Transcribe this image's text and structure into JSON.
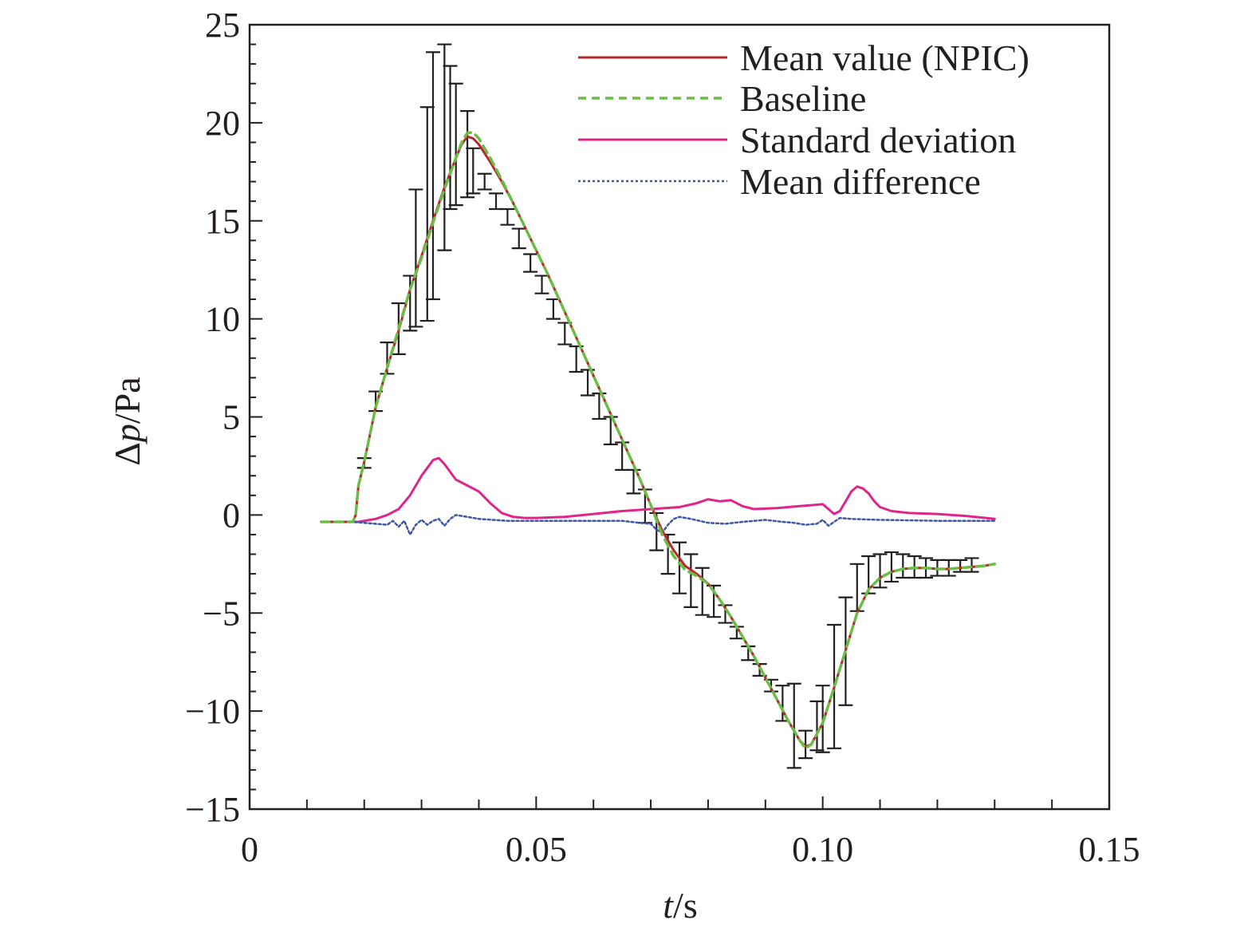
{
  "chart_data": {
    "type": "line",
    "xlabel": {
      "var": "t",
      "unit": "/s"
    },
    "ylabel": {
      "var": "Δ",
      "var2": "p",
      "unit": "/Pa"
    },
    "xlim": [
      0,
      0.15
    ],
    "ylim": [
      -15,
      25
    ],
    "xticks": [
      0,
      0.05,
      0.1,
      0.15
    ],
    "xtick_labels": [
      "0",
      "0.05",
      "0.10",
      "0.15"
    ],
    "yticks": [
      -15,
      -10,
      -5,
      0,
      5,
      10,
      15,
      20,
      25
    ],
    "ytick_labels": [
      "−15",
      "−10",
      "−5",
      "0",
      "5",
      "10",
      "15",
      "20",
      "25"
    ],
    "grid": false,
    "legend_position": "top-right",
    "series": [
      {
        "name": "Mean value (NPIC)",
        "color": "#b5282e",
        "dash": "solid",
        "points": [
          [
            0.0125,
            -0.35
          ],
          [
            0.018,
            -0.35
          ],
          [
            0.0185,
            0.0
          ],
          [
            0.019,
            1.5
          ],
          [
            0.02,
            2.7
          ],
          [
            0.022,
            5.5
          ],
          [
            0.024,
            7.5
          ],
          [
            0.026,
            9.4
          ],
          [
            0.028,
            11.5
          ],
          [
            0.03,
            13.2
          ],
          [
            0.032,
            15.0
          ],
          [
            0.034,
            16.7
          ],
          [
            0.036,
            18.2
          ],
          [
            0.037,
            18.9
          ],
          [
            0.038,
            19.3
          ],
          [
            0.039,
            19.2
          ],
          [
            0.04,
            18.9
          ],
          [
            0.042,
            18.0
          ],
          [
            0.044,
            17.0
          ],
          [
            0.046,
            15.9
          ],
          [
            0.048,
            14.7
          ],
          [
            0.05,
            13.5
          ],
          [
            0.052,
            12.3
          ],
          [
            0.054,
            11.0
          ],
          [
            0.056,
            9.7
          ],
          [
            0.058,
            8.4
          ],
          [
            0.06,
            7.1
          ],
          [
            0.062,
            5.8
          ],
          [
            0.064,
            4.5
          ],
          [
            0.066,
            3.2
          ],
          [
            0.068,
            1.9
          ],
          [
            0.07,
            0.5
          ],
          [
            0.072,
            -0.8
          ],
          [
            0.074,
            -1.8
          ],
          [
            0.076,
            -2.6
          ],
          [
            0.078,
            -3.0
          ],
          [
            0.08,
            -3.5
          ],
          [
            0.082,
            -4.3
          ],
          [
            0.084,
            -5.2
          ],
          [
            0.086,
            -6.2
          ],
          [
            0.088,
            -7.2
          ],
          [
            0.09,
            -8.3
          ],
          [
            0.092,
            -9.4
          ],
          [
            0.094,
            -10.5
          ],
          [
            0.096,
            -11.5
          ],
          [
            0.097,
            -11.8
          ],
          [
            0.098,
            -11.7
          ],
          [
            0.1,
            -10.6
          ],
          [
            0.102,
            -8.8
          ],
          [
            0.104,
            -6.9
          ],
          [
            0.106,
            -5.0
          ],
          [
            0.108,
            -3.8
          ],
          [
            0.11,
            -3.2
          ],
          [
            0.112,
            -2.9
          ],
          [
            0.114,
            -2.75
          ],
          [
            0.116,
            -2.7
          ],
          [
            0.118,
            -2.7
          ],
          [
            0.12,
            -2.75
          ],
          [
            0.122,
            -2.75
          ],
          [
            0.124,
            -2.7
          ],
          [
            0.126,
            -2.65
          ],
          [
            0.128,
            -2.6
          ],
          [
            0.13,
            -2.5
          ]
        ]
      },
      {
        "name": "Baseline",
        "color": "#6cbd45",
        "dash": "dashed",
        "points": [
          [
            0.0125,
            -0.35
          ],
          [
            0.018,
            -0.35
          ],
          [
            0.0185,
            0.0
          ],
          [
            0.019,
            1.5
          ],
          [
            0.02,
            2.7
          ],
          [
            0.022,
            5.5
          ],
          [
            0.024,
            7.5
          ],
          [
            0.026,
            9.5
          ],
          [
            0.028,
            11.5
          ],
          [
            0.03,
            13.1
          ],
          [
            0.032,
            14.9
          ],
          [
            0.034,
            16.6
          ],
          [
            0.036,
            18.2
          ],
          [
            0.037,
            19.0
          ],
          [
            0.038,
            19.5
          ],
          [
            0.039,
            19.5
          ],
          [
            0.04,
            19.2
          ],
          [
            0.042,
            18.2
          ],
          [
            0.044,
            17.1
          ],
          [
            0.046,
            15.9
          ],
          [
            0.048,
            14.7
          ],
          [
            0.05,
            13.5
          ],
          [
            0.052,
            12.3
          ],
          [
            0.054,
            11.0
          ],
          [
            0.056,
            9.7
          ],
          [
            0.058,
            8.4
          ],
          [
            0.06,
            7.1
          ],
          [
            0.062,
            5.8
          ],
          [
            0.064,
            4.5
          ],
          [
            0.066,
            3.2
          ],
          [
            0.068,
            1.9
          ],
          [
            0.07,
            0.5
          ],
          [
            0.072,
            -1.0
          ],
          [
            0.074,
            -2.1
          ],
          [
            0.076,
            -2.8
          ],
          [
            0.078,
            -3.1
          ],
          [
            0.08,
            -3.5
          ],
          [
            0.082,
            -4.3
          ],
          [
            0.084,
            -5.2
          ],
          [
            0.086,
            -6.2
          ],
          [
            0.088,
            -7.2
          ],
          [
            0.09,
            -8.3
          ],
          [
            0.092,
            -9.4
          ],
          [
            0.094,
            -10.5
          ],
          [
            0.096,
            -11.5
          ],
          [
            0.097,
            -11.9
          ],
          [
            0.098,
            -11.7
          ],
          [
            0.1,
            -10.6
          ],
          [
            0.102,
            -8.8
          ],
          [
            0.104,
            -6.9
          ],
          [
            0.106,
            -5.0
          ],
          [
            0.108,
            -3.8
          ],
          [
            0.11,
            -3.2
          ],
          [
            0.112,
            -2.9
          ],
          [
            0.114,
            -2.75
          ],
          [
            0.116,
            -2.7
          ],
          [
            0.118,
            -2.7
          ],
          [
            0.12,
            -2.75
          ],
          [
            0.122,
            -2.75
          ],
          [
            0.124,
            -2.7
          ],
          [
            0.126,
            -2.65
          ],
          [
            0.128,
            -2.6
          ],
          [
            0.13,
            -2.5
          ]
        ]
      },
      {
        "name": "Standard deviation",
        "color": "#e0258a",
        "dash": "solid",
        "points": [
          [
            0.0125,
            -0.35
          ],
          [
            0.019,
            -0.35
          ],
          [
            0.022,
            -0.2
          ],
          [
            0.024,
            0.0
          ],
          [
            0.026,
            0.3
          ],
          [
            0.028,
            1.0
          ],
          [
            0.03,
            2.0
          ],
          [
            0.032,
            2.8
          ],
          [
            0.033,
            2.9
          ],
          [
            0.034,
            2.6
          ],
          [
            0.036,
            1.8
          ],
          [
            0.038,
            1.5
          ],
          [
            0.04,
            1.2
          ],
          [
            0.042,
            0.6
          ],
          [
            0.044,
            0.1
          ],
          [
            0.046,
            -0.1
          ],
          [
            0.048,
            -0.15
          ],
          [
            0.05,
            -0.15
          ],
          [
            0.055,
            -0.1
          ],
          [
            0.06,
            0.05
          ],
          [
            0.065,
            0.2
          ],
          [
            0.07,
            0.3
          ],
          [
            0.075,
            0.4
          ],
          [
            0.078,
            0.6
          ],
          [
            0.08,
            0.8
          ],
          [
            0.082,
            0.7
          ],
          [
            0.084,
            0.75
          ],
          [
            0.086,
            0.45
          ],
          [
            0.088,
            0.3
          ],
          [
            0.092,
            0.35
          ],
          [
            0.096,
            0.45
          ],
          [
            0.1,
            0.55
          ],
          [
            0.101,
            0.3
          ],
          [
            0.102,
            0.05
          ],
          [
            0.103,
            0.2
          ],
          [
            0.104,
            0.7
          ],
          [
            0.105,
            1.2
          ],
          [
            0.106,
            1.45
          ],
          [
            0.107,
            1.35
          ],
          [
            0.108,
            1.1
          ],
          [
            0.109,
            0.7
          ],
          [
            0.11,
            0.4
          ],
          [
            0.112,
            0.2
          ],
          [
            0.115,
            0.1
          ],
          [
            0.12,
            0.05
          ],
          [
            0.125,
            -0.05
          ],
          [
            0.13,
            -0.2
          ]
        ]
      },
      {
        "name": "Mean difference",
        "color": "#3f57a6",
        "dash": "dotted",
        "points": [
          [
            0.0125,
            -0.35
          ],
          [
            0.018,
            -0.35
          ],
          [
            0.02,
            -0.4
          ],
          [
            0.022,
            -0.45
          ],
          [
            0.024,
            -0.5
          ],
          [
            0.025,
            -0.3
          ],
          [
            0.026,
            -0.6
          ],
          [
            0.027,
            -0.3
          ],
          [
            0.028,
            -1.0
          ],
          [
            0.029,
            -0.5
          ],
          [
            0.03,
            -0.25
          ],
          [
            0.031,
            -0.5
          ],
          [
            0.032,
            -0.3
          ],
          [
            0.033,
            -0.2
          ],
          [
            0.034,
            -0.55
          ],
          [
            0.035,
            -0.2
          ],
          [
            0.036,
            0.0
          ],
          [
            0.038,
            -0.1
          ],
          [
            0.04,
            -0.2
          ],
          [
            0.045,
            -0.3
          ],
          [
            0.05,
            -0.3
          ],
          [
            0.055,
            -0.3
          ],
          [
            0.06,
            -0.3
          ],
          [
            0.065,
            -0.3
          ],
          [
            0.068,
            -0.4
          ],
          [
            0.07,
            -0.45
          ],
          [
            0.071,
            -0.75
          ],
          [
            0.072,
            -0.9
          ],
          [
            0.073,
            -0.5
          ],
          [
            0.074,
            -0.2
          ],
          [
            0.075,
            -0.1
          ],
          [
            0.077,
            -0.2
          ],
          [
            0.08,
            -0.4
          ],
          [
            0.083,
            -0.45
          ],
          [
            0.086,
            -0.35
          ],
          [
            0.09,
            -0.25
          ],
          [
            0.093,
            -0.35
          ],
          [
            0.095,
            -0.4
          ],
          [
            0.097,
            -0.5
          ],
          [
            0.099,
            -0.45
          ],
          [
            0.1,
            -0.25
          ],
          [
            0.101,
            -0.55
          ],
          [
            0.102,
            -0.35
          ],
          [
            0.103,
            -0.15
          ],
          [
            0.105,
            -0.2
          ],
          [
            0.11,
            -0.25
          ],
          [
            0.12,
            -0.3
          ],
          [
            0.13,
            -0.3
          ]
        ]
      }
    ],
    "error_bars": {
      "color": "#231f20",
      "bars": [
        [
          0.02,
          2.4,
          2.9
        ],
        [
          0.022,
          5.3,
          6.3
        ],
        [
          0.024,
          7.2,
          8.8
        ],
        [
          0.026,
          8.2,
          10.8
        ],
        [
          0.028,
          9.4,
          12.2
        ],
        [
          0.029,
          9.6,
          16.6
        ],
        [
          0.031,
          9.9,
          20.8
        ],
        [
          0.032,
          11.0,
          23.6
        ],
        [
          0.034,
          13.5,
          24.0
        ],
        [
          0.035,
          15.6,
          22.9
        ],
        [
          0.036,
          15.8,
          22.0
        ],
        [
          0.038,
          16.2,
          20.6
        ],
        [
          0.039,
          16.4,
          18.7
        ],
        [
          0.041,
          16.6,
          17.4
        ],
        [
          0.043,
          15.6,
          16.4
        ],
        [
          0.045,
          14.8,
          15.6
        ],
        [
          0.047,
          13.6,
          14.6
        ],
        [
          0.049,
          12.4,
          13.3
        ],
        [
          0.051,
          11.3,
          12.2
        ],
        [
          0.053,
          10.0,
          11.0
        ],
        [
          0.055,
          8.7,
          9.8
        ],
        [
          0.057,
          7.3,
          8.6
        ],
        [
          0.059,
          6.1,
          7.4
        ],
        [
          0.061,
          4.9,
          6.2
        ],
        [
          0.063,
          3.6,
          5.0
        ],
        [
          0.065,
          2.3,
          3.7
        ],
        [
          0.067,
          1.1,
          2.3
        ],
        [
          0.069,
          -0.4,
          1.3
        ],
        [
          0.071,
          -1.8,
          0.1
        ],
        [
          0.073,
          -3.0,
          -1.0
        ],
        [
          0.075,
          -4.0,
          -1.4
        ],
        [
          0.077,
          -4.7,
          -2.0
        ],
        [
          0.079,
          -5.1,
          -2.7
        ],
        [
          0.081,
          -5.2,
          -3.6
        ],
        [
          0.083,
          -5.5,
          -4.6
        ],
        [
          0.085,
          -6.3,
          -5.7
        ],
        [
          0.087,
          -7.4,
          -6.7
        ],
        [
          0.089,
          -8.2,
          -7.6
        ],
        [
          0.091,
          -9.0,
          -8.4
        ],
        [
          0.093,
          -10.5,
          -8.7
        ],
        [
          0.095,
          -12.9,
          -8.6
        ],
        [
          0.097,
          -12.4,
          -11.0
        ],
        [
          0.099,
          -12.0,
          -9.5
        ],
        [
          0.1,
          -12.1,
          -8.7
        ],
        [
          0.102,
          -11.9,
          -5.6
        ],
        [
          0.104,
          -9.7,
          -4.2
        ],
        [
          0.106,
          -4.9,
          -2.5
        ],
        [
          0.108,
          -4.0,
          -2.1
        ],
        [
          0.11,
          -3.7,
          -2.0
        ],
        [
          0.112,
          -3.4,
          -1.9
        ],
        [
          0.114,
          -3.2,
          -2.0
        ],
        [
          0.116,
          -3.2,
          -2.1
        ],
        [
          0.118,
          -3.2,
          -2.2
        ],
        [
          0.12,
          -3.1,
          -2.3
        ],
        [
          0.122,
          -3.1,
          -2.3
        ],
        [
          0.124,
          -2.9,
          -2.3
        ],
        [
          0.126,
          -2.9,
          -2.2
        ]
      ]
    }
  },
  "legend": {
    "items": [
      {
        "label": "Mean value (NPIC)",
        "color": "#b5282e",
        "dash": "solid"
      },
      {
        "label": "Baseline",
        "color": "#6cbd45",
        "dash": "dashed"
      },
      {
        "label": "Standard deviation",
        "color": "#e0258a",
        "dash": "solid"
      },
      {
        "label": "Mean difference",
        "color": "#3f57a6",
        "dash": "dotted"
      }
    ]
  }
}
